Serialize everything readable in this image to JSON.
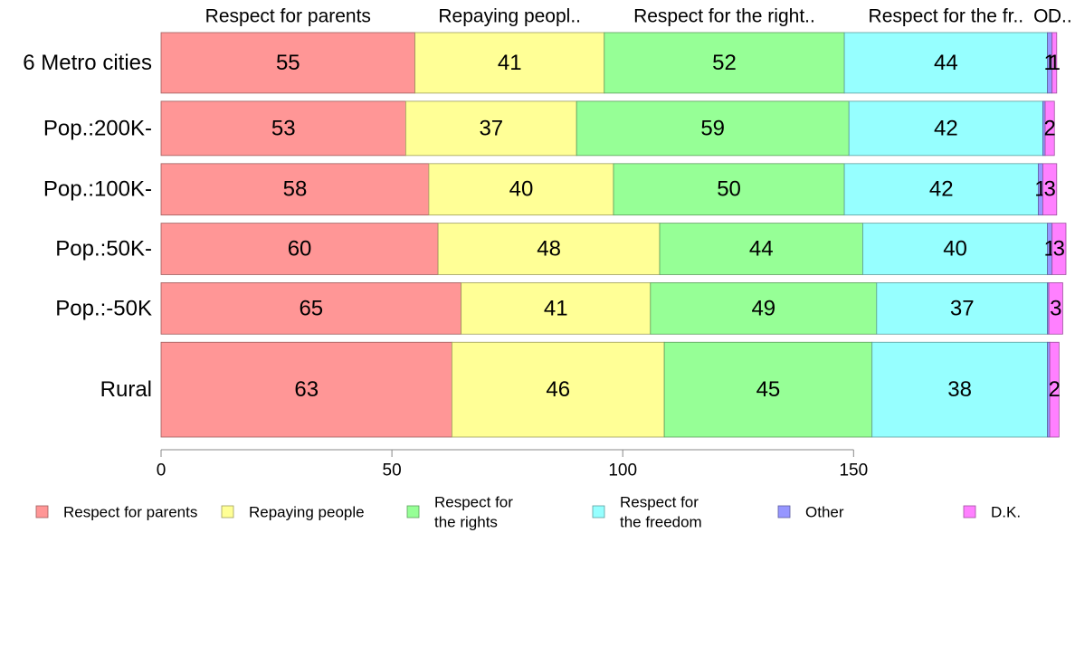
{
  "chart_data": {
    "type": "bar",
    "orientation": "horizontal",
    "stacked": true,
    "variable_width": true,
    "categories": [
      "6 Metro cities",
      "Pop.:200K-",
      "Pop.:100K-",
      "Pop.:50K-",
      "Pop.:-50K",
      "Rural"
    ],
    "column_headers": [
      "Respect for parents",
      "Repaying peopl..",
      "Respect for the right..",
      "Respect for the fr..",
      "O..",
      "D.."
    ],
    "series": [
      {
        "name": "Respect for parents",
        "color": "#FF9696",
        "values": [
          55,
          53,
          58,
          60,
          65,
          63
        ]
      },
      {
        "name": "Repaying people",
        "color": "#FFFF96",
        "values": [
          41,
          37,
          40,
          48,
          41,
          46
        ]
      },
      {
        "name": "Respect for the rights",
        "color": "#96FF96",
        "values": [
          52,
          59,
          50,
          44,
          49,
          45
        ]
      },
      {
        "name": "Respect for the freedom",
        "color": "#96FFFF",
        "values": [
          44,
          42,
          42,
          40,
          37,
          38
        ]
      },
      {
        "name": "Other",
        "color": "#9696FF",
        "values": [
          1,
          0.5,
          1,
          1,
          0.3,
          0.5
        ]
      },
      {
        "name": "D.K.",
        "color": "#FF80FF",
        "values": [
          1,
          2,
          3,
          3,
          3,
          2
        ]
      }
    ],
    "value_labels": [
      [
        "55",
        "41",
        "52",
        "44",
        "1",
        "1"
      ],
      [
        "53",
        "37",
        "59",
        "42",
        "",
        "2"
      ],
      [
        "58",
        "40",
        "50",
        "42",
        "1",
        "3"
      ],
      [
        "60",
        "48",
        "44",
        "40",
        "1",
        "3"
      ],
      [
        "65",
        "41",
        "49",
        "37",
        "",
        "3"
      ],
      [
        "63",
        "46",
        "45",
        "38",
        "",
        "2"
      ]
    ],
    "row_weights": [
      1.06,
      0.95,
      0.9,
      0.9,
      0.9,
      1.66
    ],
    "xlim": [
      0,
      196
    ],
    "xticks": [
      0,
      50,
      100,
      150
    ],
    "legend": {
      "position": "bottom",
      "entries": [
        {
          "lines": [
            "Respect for parents"
          ],
          "color": "#FF9696"
        },
        {
          "lines": [
            "Repaying people"
          ],
          "color": "#FFFF96"
        },
        {
          "lines": [
            "Respect for",
            "the rights"
          ],
          "color": "#96FF96"
        },
        {
          "lines": [
            "Respect for",
            "the freedom"
          ],
          "color": "#96FFFF"
        },
        {
          "lines": [
            "Other"
          ],
          "color": "#9696FF"
        },
        {
          "lines": [
            "D.K."
          ],
          "color": "#FF80FF"
        }
      ]
    },
    "grid": false
  }
}
